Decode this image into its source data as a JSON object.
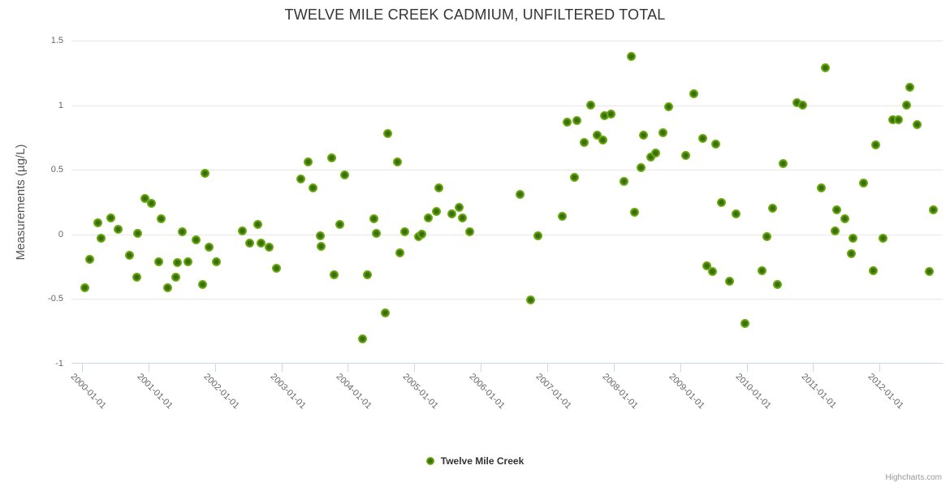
{
  "title": "TWELVE MILE CREEK CADMIUM, UNFILTERED TOTAL",
  "y_axis_title": "Measurements (µg/L)",
  "legend": {
    "label": "Twelve Mile Creek",
    "marker_color": "#7ab514"
  },
  "credits": "Highcharts.com",
  "colors": {
    "point_outer": "#7fc026",
    "point_core": "#3a6e0a",
    "gridline": "#e6e6e6",
    "axis_line": "#ccd6eb",
    "title_text": "#333333",
    "axis_label_text": "#666666",
    "credits_text": "#999999"
  },
  "chart_data": {
    "type": "scatter",
    "title": "TWELVE MILE CREEK CADMIUM, UNFILTERED TOTAL",
    "xlabel": "",
    "ylabel": "Measurements (µg/L)",
    "grid": true,
    "legend_position": "bottom-center",
    "xlim": [
      1999.84,
      2012.95
    ],
    "ylim": [
      -1,
      1.5
    ],
    "y_ticks": [
      1.5,
      1,
      0.5,
      0,
      -0.5,
      -1
    ],
    "y_tick_labels": [
      "1.5",
      "1",
      "0.5",
      "0",
      "-0.5",
      "-1"
    ],
    "y_gridlines": [
      1.5,
      1,
      0.5,
      0,
      -0.5
    ],
    "x_tick_years": [
      2000,
      2001,
      2002,
      2003,
      2004,
      2005,
      2006,
      2007,
      2008,
      2009,
      2010,
      2011,
      2012
    ],
    "x_tick_labels": [
      "2000-01-01",
      "2001-01-01",
      "2002-01-01",
      "2003-01-01",
      "2004-01-01",
      "2005-01-01",
      "2006-01-01",
      "2007-01-01",
      "2008-01-01",
      "2009-01-01",
      "2010-01-01",
      "2011-01-01",
      "2012-01-01"
    ],
    "series": [
      {
        "name": "Twelve Mile Creek",
        "color": "#7ab514",
        "points": [
          [
            2000.04,
            -0.41
          ],
          [
            2000.11,
            -0.19
          ],
          [
            2000.24,
            0.09
          ],
          [
            2000.29,
            -0.03
          ],
          [
            2000.43,
            0.13
          ],
          [
            2000.54,
            0.04
          ],
          [
            2000.71,
            -0.16
          ],
          [
            2000.82,
            -0.33
          ],
          [
            2000.84,
            0.01
          ],
          [
            2000.94,
            0.28
          ],
          [
            2001.04,
            0.24
          ],
          [
            2001.15,
            -0.21
          ],
          [
            2001.19,
            0.12
          ],
          [
            2001.29,
            -0.41
          ],
          [
            2001.41,
            -0.33
          ],
          [
            2001.43,
            -0.22
          ],
          [
            2001.51,
            0.02
          ],
          [
            2001.59,
            -0.21
          ],
          [
            2001.71,
            -0.04
          ],
          [
            2001.81,
            -0.39
          ],
          [
            2001.85,
            0.47
          ],
          [
            2001.91,
            -0.1
          ],
          [
            2002.02,
            -0.21
          ],
          [
            2002.41,
            0.03
          ],
          [
            2002.52,
            -0.07
          ],
          [
            2002.64,
            0.08
          ],
          [
            2002.69,
            -0.07
          ],
          [
            2002.81,
            -0.1
          ],
          [
            2002.93,
            -0.26
          ],
          [
            2003.29,
            0.43
          ],
          [
            2003.4,
            0.56
          ],
          [
            2003.47,
            0.36
          ],
          [
            2003.58,
            -0.01
          ],
          [
            2003.6,
            -0.09
          ],
          [
            2003.75,
            0.59
          ],
          [
            2003.79,
            -0.31
          ],
          [
            2003.88,
            0.08
          ],
          [
            2003.95,
            0.46
          ],
          [
            2004.22,
            -0.81
          ],
          [
            2004.29,
            -0.31
          ],
          [
            2004.39,
            0.12
          ],
          [
            2004.43,
            0.01
          ],
          [
            2004.56,
            -0.61
          ],
          [
            2004.6,
            0.78
          ],
          [
            2004.74,
            0.56
          ],
          [
            2004.78,
            -0.14
          ],
          [
            2004.85,
            0.02
          ],
          [
            2005.06,
            -0.02
          ],
          [
            2005.11,
            0.0
          ],
          [
            2005.21,
            0.13
          ],
          [
            2005.33,
            0.18
          ],
          [
            2005.37,
            0.36
          ],
          [
            2005.57,
            0.16
          ],
          [
            2005.67,
            0.21
          ],
          [
            2005.72,
            0.13
          ],
          [
            2005.83,
            0.02
          ],
          [
            2006.59,
            0.31
          ],
          [
            2006.75,
            -0.51
          ],
          [
            2006.86,
            -0.01
          ],
          [
            2007.23,
            0.14
          ],
          [
            2007.3,
            0.87
          ],
          [
            2007.41,
            0.44
          ],
          [
            2007.45,
            0.88
          ],
          [
            2007.56,
            0.71
          ],
          [
            2007.65,
            1.0
          ],
          [
            2007.75,
            0.77
          ],
          [
            2007.84,
            0.73
          ],
          [
            2007.86,
            0.92
          ],
          [
            2007.96,
            0.93
          ],
          [
            2008.15,
            0.41
          ],
          [
            2008.26,
            1.38
          ],
          [
            2008.31,
            0.17
          ],
          [
            2008.41,
            0.52
          ],
          [
            2008.45,
            0.77
          ],
          [
            2008.56,
            0.6
          ],
          [
            2008.63,
            0.63
          ],
          [
            2008.74,
            0.79
          ],
          [
            2008.83,
            0.99
          ],
          [
            2009.08,
            0.61
          ],
          [
            2009.21,
            1.09
          ],
          [
            2009.34,
            0.74
          ],
          [
            2009.4,
            -0.24
          ],
          [
            2009.49,
            -0.29
          ],
          [
            2009.54,
            0.7
          ],
          [
            2009.62,
            0.25
          ],
          [
            2009.74,
            -0.36
          ],
          [
            2009.84,
            0.16
          ],
          [
            2009.98,
            -0.69
          ],
          [
            2010.23,
            -0.28
          ],
          [
            2010.31,
            -0.02
          ],
          [
            2010.39,
            0.2
          ],
          [
            2010.46,
            -0.39
          ],
          [
            2010.55,
            0.55
          ],
          [
            2010.76,
            1.02
          ],
          [
            2010.84,
            1.0
          ],
          [
            2011.12,
            0.36
          ],
          [
            2011.18,
            1.29
          ],
          [
            2011.33,
            0.03
          ],
          [
            2011.36,
            0.19
          ],
          [
            2011.48,
            0.12
          ],
          [
            2011.57,
            -0.15
          ],
          [
            2011.6,
            -0.03
          ],
          [
            2011.76,
            0.4
          ],
          [
            2011.91,
            -0.28
          ],
          [
            2011.94,
            0.69
          ],
          [
            2012.05,
            -0.03
          ],
          [
            2012.2,
            0.89
          ],
          [
            2012.29,
            0.89
          ],
          [
            2012.41,
            1.0
          ],
          [
            2012.45,
            1.14
          ],
          [
            2012.56,
            0.85
          ],
          [
            2012.75,
            -0.29
          ],
          [
            2012.81,
            0.19
          ]
        ]
      }
    ]
  }
}
